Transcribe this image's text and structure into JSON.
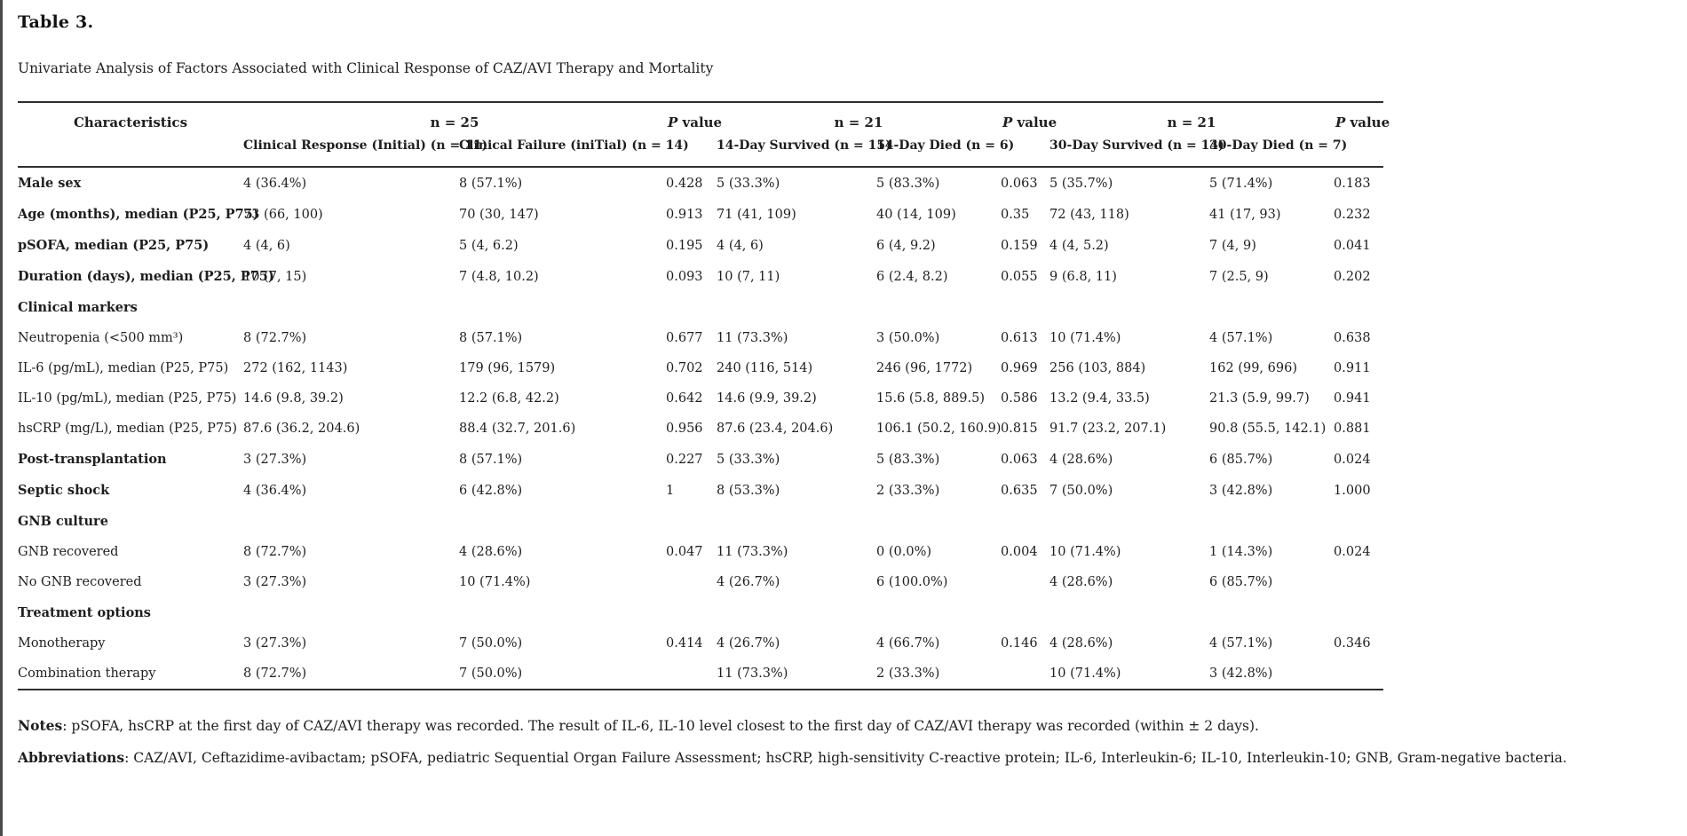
{
  "page": {
    "title": "Table 3.",
    "caption": "Univariate Analysis of Factors Associated with Clinical Response of CAZ/AVI Therapy and Mortality"
  },
  "table": {
    "header1": {
      "characteristics": "Characteristics",
      "group1_n": "n = 25",
      "group2_n": "n = 21",
      "group3_n": "n = 21",
      "p_italic": "P",
      "p_rest": " value"
    },
    "header2": {
      "clinical_response": "Clinical Response (Initial) (n = 11)",
      "clinical_failure": "Clinical Failure (iniTial) (n = 14)",
      "day14_survived": "14-Day Survived (n = 15)",
      "day14_died": "14-Day Died (n = 6)",
      "day30_survived": "30-Day Survived (n = 14)",
      "day30_died": "30-Day Died (n = 7)"
    },
    "rows": [
      {
        "label": "Male sex",
        "bold": true,
        "section": false,
        "cells": [
          "4 (36.4%)",
          "8 (57.1%)",
          "0.428",
          "5 (33.3%)",
          "5 (83.3%)",
          "0.063",
          "5 (35.7%)",
          "5 (71.4%)",
          "0.183"
        ]
      },
      {
        "label": "Age (months), median (P25, P75)",
        "bold": true,
        "section": false,
        "cells": [
          "73 (66, 100)",
          "70 (30, 147)",
          "0.913",
          "71 (41, 109)",
          "40 (14, 109)",
          "0.35",
          "72 (43, 118)",
          "41 (17, 93)",
          "0.232"
        ]
      },
      {
        "label": "pSOFA, median (P25, P75)",
        "bold": true,
        "section": false,
        "cells": [
          "4 (4, 6)",
          "5 (4, 6.2)",
          "0.195",
          "4 (4, 6)",
          "6 (4, 9.2)",
          "0.159",
          "4 (4, 5.2)",
          "7 (4, 9)",
          "0.041"
        ]
      },
      {
        "label": "Duration (days), median (P25, P75)",
        "bold": true,
        "section": false,
        "cells": [
          "10 (7, 15)",
          "7 (4.8, 10.2)",
          "0.093",
          "10 (7, 11)",
          "6 (2.4, 8.2)",
          "0.055",
          "9 (6.8, 11)",
          "7 (2.5, 9)",
          "0.202"
        ]
      },
      {
        "label": "Clinical markers",
        "bold": true,
        "section": true,
        "cells": [
          "",
          "",
          "",
          "",
          "",
          "",
          "",
          "",
          ""
        ]
      },
      {
        "label": "Neutropenia (<500 mm³)",
        "bold": false,
        "section": false,
        "cells": [
          "8 (72.7%)",
          "8 (57.1%)",
          "0.677",
          "11 (73.3%)",
          "3 (50.0%)",
          "0.613",
          "10 (71.4%)",
          "4 (57.1%)",
          "0.638"
        ]
      },
      {
        "label": "IL-6 (pg/mL), median (P25, P75)",
        "bold": false,
        "section": false,
        "cells": [
          "272 (162, 1143)",
          "179 (96, 1579)",
          "0.702",
          "240 (116, 514)",
          "246 (96, 1772)",
          "0.969",
          "256 (103, 884)",
          "162 (99, 696)",
          "0.911"
        ]
      },
      {
        "label": "IL-10 (pg/mL), median (P25, P75)",
        "bold": false,
        "section": false,
        "cells": [
          "14.6 (9.8, 39.2)",
          "12.2 (6.8, 42.2)",
          "0.642",
          "14.6 (9.9, 39.2)",
          "15.6 (5.8, 889.5)",
          "0.586",
          "13.2 (9.4, 33.5)",
          "21.3 (5.9, 99.7)",
          "0.941"
        ]
      },
      {
        "label": "hsCRP (mg/L), median (P25, P75)",
        "bold": false,
        "section": false,
        "cells": [
          "87.6 (36.2, 204.6)",
          "88.4 (32.7, 201.6)",
          "0.956",
          "87.6 (23.4, 204.6)",
          "106.1 (50.2, 160.9)",
          "0.815",
          "91.7 (23.2, 207.1)",
          "90.8 (55.5, 142.1)",
          "0.881"
        ]
      },
      {
        "label": "Post-transplantation",
        "bold": true,
        "section": false,
        "cells": [
          "3 (27.3%)",
          "8 (57.1%)",
          "0.227",
          "5 (33.3%)",
          "5 (83.3%)",
          "0.063",
          "4 (28.6%)",
          "6 (85.7%)",
          "0.024"
        ]
      },
      {
        "label": "Septic shock",
        "bold": true,
        "section": false,
        "cells": [
          "4 (36.4%)",
          "6 (42.8%)",
          "1",
          "8 (53.3%)",
          "2 (33.3%)",
          "0.635",
          "7 (50.0%)",
          "3 (42.8%)",
          "1.000"
        ]
      },
      {
        "label": "GNB culture",
        "bold": true,
        "section": true,
        "cells": [
          "",
          "",
          "",
          "",
          "",
          "",
          "",
          "",
          ""
        ]
      },
      {
        "label": "GNB recovered",
        "bold": false,
        "section": false,
        "cells": [
          "8 (72.7%)",
          "4 (28.6%)",
          "0.047",
          "11 (73.3%)",
          "0 (0.0%)",
          "0.004",
          "10 (71.4%)",
          "1 (14.3%)",
          "0.024"
        ]
      },
      {
        "label": "No GNB recovered",
        "bold": false,
        "section": false,
        "cells": [
          "3 (27.3%)",
          "10 (71.4%)",
          "",
          "4 (26.7%)",
          "6 (100.0%)",
          "",
          "4 (28.6%)",
          "6 (85.7%)",
          ""
        ]
      },
      {
        "label": "Treatment options",
        "bold": true,
        "section": true,
        "cells": [
          "",
          "",
          "",
          "",
          "",
          "",
          "",
          "",
          ""
        ]
      },
      {
        "label": "Monotherapy",
        "bold": false,
        "section": false,
        "cells": [
          "3 (27.3%)",
          "7 (50.0%)",
          "0.414",
          "4 (26.7%)",
          "4 (66.7%)",
          "0.146",
          "4 (28.6%)",
          "4 (57.1%)",
          "0.346"
        ]
      },
      {
        "label": "Combination therapy",
        "bold": false,
        "section": false,
        "cells": [
          "8 (72.7%)",
          "7 (50.0%)",
          "",
          "11 (73.3%)",
          "2 (33.3%)",
          "",
          "10 (71.4%)",
          "3 (42.8%)",
          ""
        ]
      }
    ]
  },
  "notes": {
    "notes_label": "Notes",
    "notes_text": ": pSOFA, hsCRP at the first day of CAZ/AVI therapy was recorded. The result of IL-6, IL-10 level closest to the first day of CAZ/AVI therapy was recorded (within ± 2 days).",
    "abbr_label": "Abbreviations",
    "abbr_text": ": CAZ/AVI, Ceftazidime-avibactam; pSOFA, pediatric Sequential Organ Failure Assessment; hsCRP, high-sensitivity C-reactive protein; IL-6, Interleukin-6; IL-10, Interleukin-10; GNB, Gram-negative bacteria."
  }
}
